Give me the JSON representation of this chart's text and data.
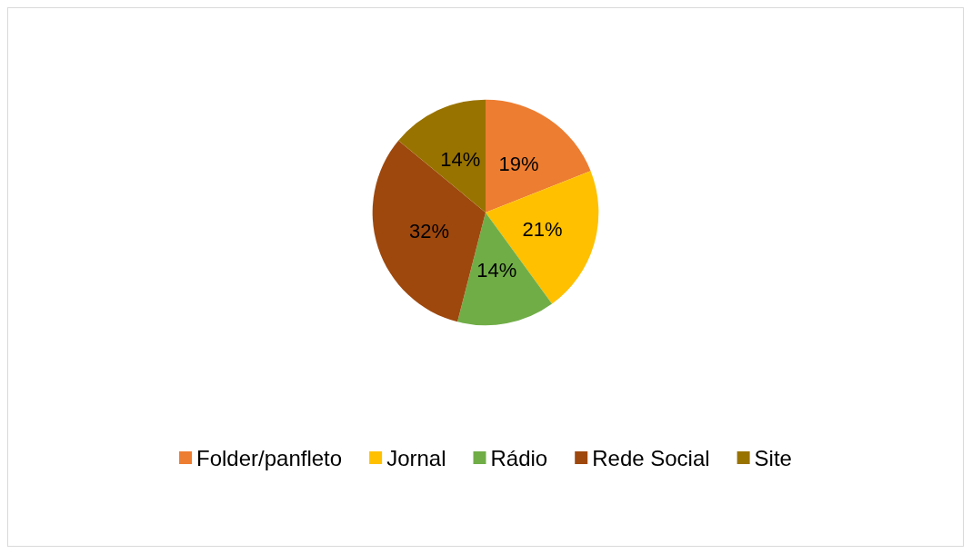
{
  "chart_data": {
    "type": "pie",
    "categories": [
      "Folder/panfleto",
      "Jornal",
      "Rádio",
      "Rede Social",
      "Site"
    ],
    "values": [
      19,
      21,
      14,
      32,
      14
    ],
    "value_labels": [
      "19%",
      "21%",
      "14%",
      "32%",
      "14%"
    ],
    "colors": [
      "#ed7d31",
      "#ffc000",
      "#70ad47",
      "#9e480e",
      "#997300"
    ],
    "legend": "bottom"
  }
}
